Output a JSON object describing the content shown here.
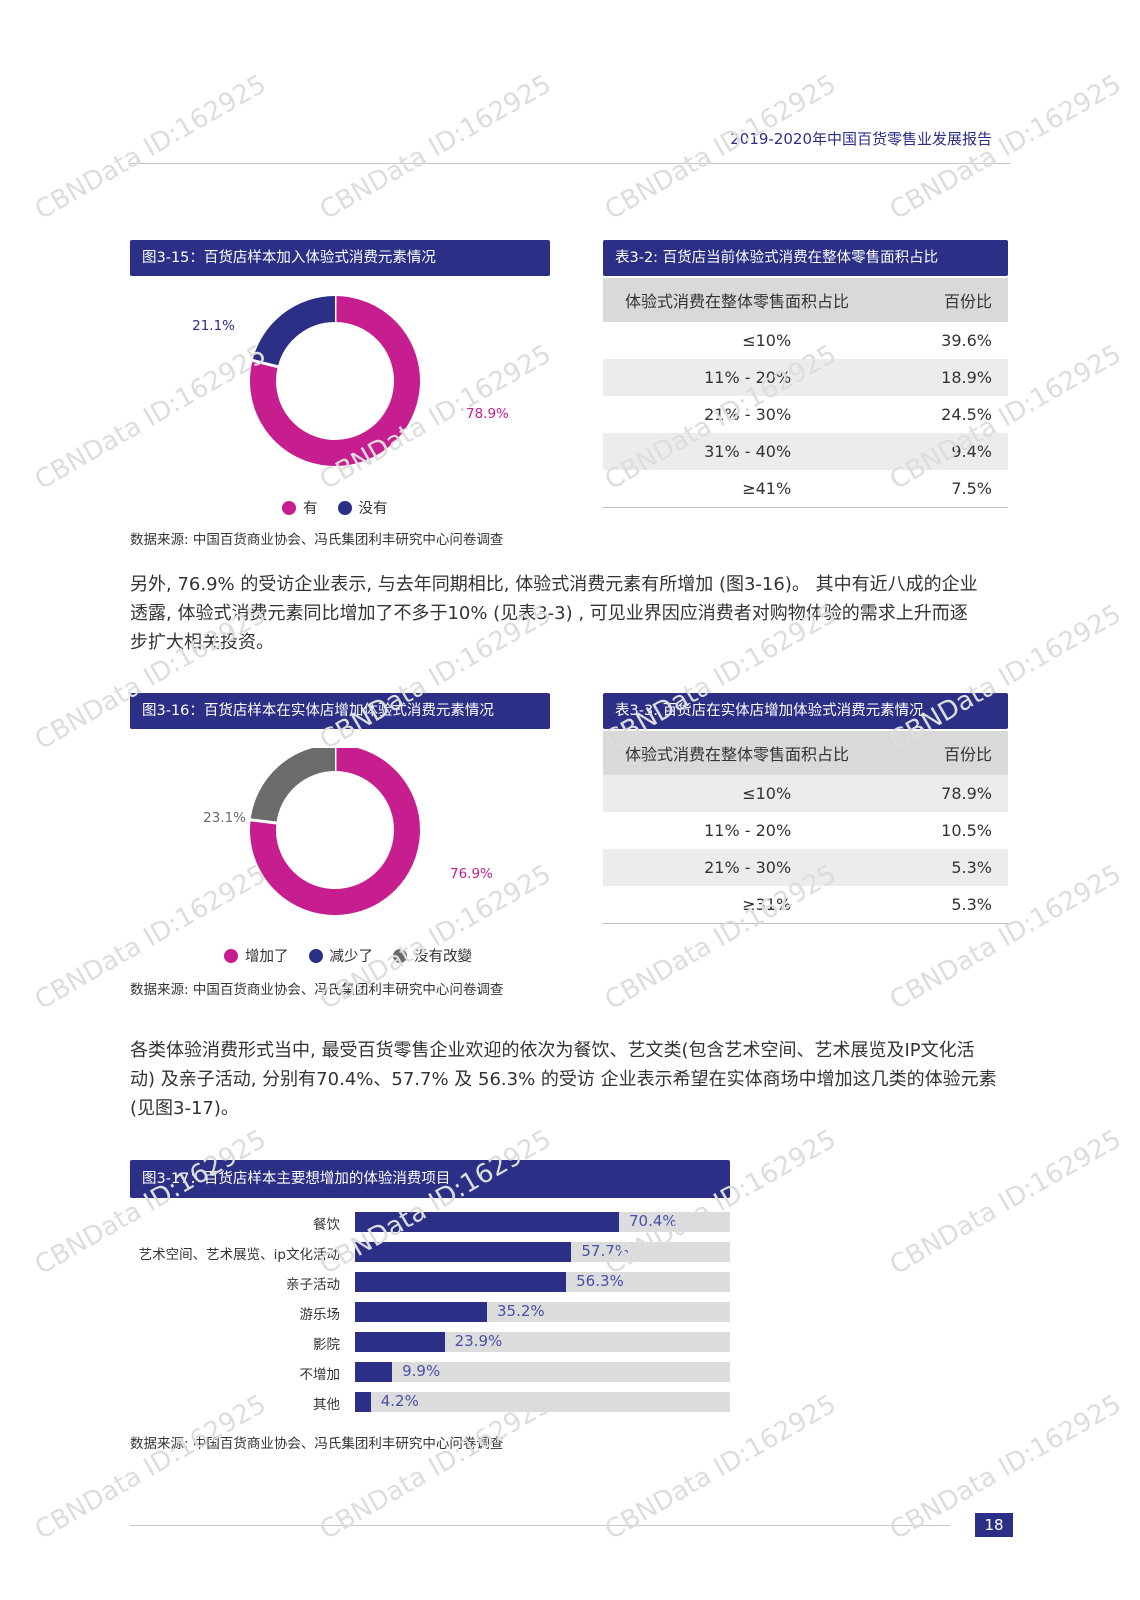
{
  "header": {
    "report_title": "2019-2020年中国百货零售业发展报告"
  },
  "fig15": {
    "title": "图3-15：百货店样本加入体验式消费元素情况",
    "legend": [
      {
        "label": "有",
        "color": "#c71e8f"
      },
      {
        "label": "没有",
        "color": "#2b2f86"
      }
    ],
    "source": "数据来源: 中国百货商业协会、冯氏集团利丰研究中心问卷调查"
  },
  "table32": {
    "title": "表3-2: 百货店当前体验式消费在整体零售面积占比",
    "headers": [
      "体验式消费在整体零售面积占比",
      "百份比"
    ],
    "rows": [
      [
        "≤10%",
        "39.6%"
      ],
      [
        "11% - 20%",
        "18.9%"
      ],
      [
        "21% - 30%",
        "24.5%"
      ],
      [
        "31% - 40%",
        "9.4%"
      ],
      [
        "≥41%",
        "7.5%"
      ]
    ]
  },
  "paragraph1": {
    "lines": [
      "另外, 76.9% 的受访企业表示, 与去年同期相比, 体验式消费元素有所增加 (图3-16)。 其中有近八成的企业",
      "透露, 体验式消费元素同比增加了不多于10% (见表3-3) , 可见业界因应消费者对购物体验的需求上升而逐",
      "步扩大相关投资。"
    ]
  },
  "fig16": {
    "title": "图3-16：百货店样本在实体店增加体验式消费元素情况",
    "legend": [
      {
        "label": "增加了",
        "color": "#c71e8f"
      },
      {
        "label": "减少了",
        "color": "#2b2f86"
      },
      {
        "label": "没有改變",
        "color": "#6b6b6b"
      }
    ],
    "source": "数据来源: 中国百货商业协会、冯氏集团利丰研究中心问卷调查"
  },
  "table33": {
    "title": "表3-3: 百货店在实体店增加体验式消费元素情况",
    "headers": [
      "体验式消费在整体零售面积占比",
      "百份比"
    ],
    "rows": [
      [
        "≤10%",
        "78.9%"
      ],
      [
        "11% - 20%",
        "10.5%"
      ],
      [
        "21% - 30%",
        "5.3%"
      ],
      [
        "≥31%",
        "5.3%"
      ]
    ]
  },
  "paragraph2": {
    "lines": [
      "各类体验消费形式当中, 最受百货零售企业欢迎的依次为餐饮、艺文类(包含艺术空间、艺术展览及IP文化活",
      "动) 及亲子活动, 分别有70.4%、57.7% 及 56.3% 的受访 企业表示希望在实体商场中增加这几类的体验元素",
      "(见图3-17)。"
    ]
  },
  "fig17": {
    "title": "图3-17：百货店样本主要想增加的体验消费项目",
    "source": "数据来源: 中国百货商业协会、冯氏集团利丰研究中心问卷调查"
  },
  "chart_data": [
    {
      "type": "pie",
      "subtype": "donut",
      "title": "图3-15：百货店样本加入体验式消费元素情况",
      "categories": [
        "有",
        "没有"
      ],
      "values": [
        78.9,
        21.1
      ],
      "labels": [
        "78.9%",
        "21.1%"
      ],
      "colors": [
        "#c71e8f",
        "#2b2f86"
      ],
      "legend_position": "bottom"
    },
    {
      "type": "pie",
      "subtype": "donut",
      "title": "图3-16：百货店样本在实体店增加体验式消费元素情况",
      "categories": [
        "增加了",
        "减少了",
        "没有改變"
      ],
      "values": [
        76.9,
        0,
        23.1
      ],
      "labels": [
        "76.9%",
        "",
        "23.1%"
      ],
      "colors": [
        "#c71e8f",
        "#2b2f86",
        "#6b6b6b"
      ],
      "legend_position": "bottom"
    },
    {
      "type": "bar",
      "orientation": "horizontal",
      "title": "图3-17：百货店样本主要想增加的体验消费项目",
      "categories": [
        "餐饮",
        "艺术空间、艺术展览、ip文化活动",
        "亲子活动",
        "游乐场",
        "影院",
        "不增加",
        "其他"
      ],
      "values": [
        70.4,
        57.7,
        56.3,
        35.2,
        23.9,
        9.9,
        4.2
      ],
      "labels": [
        "70.4%",
        "57.7%",
        "56.3%",
        "35.2%",
        "23.9%",
        "9.9%",
        "4.2%"
      ],
      "xlim": [
        0,
        100
      ],
      "colors": {
        "fill": "#2b2f86",
        "track": "#dcdcdc"
      }
    }
  ],
  "footer": {
    "page_number": "18"
  },
  "watermark": {
    "text": "CBNData ID:162925"
  }
}
